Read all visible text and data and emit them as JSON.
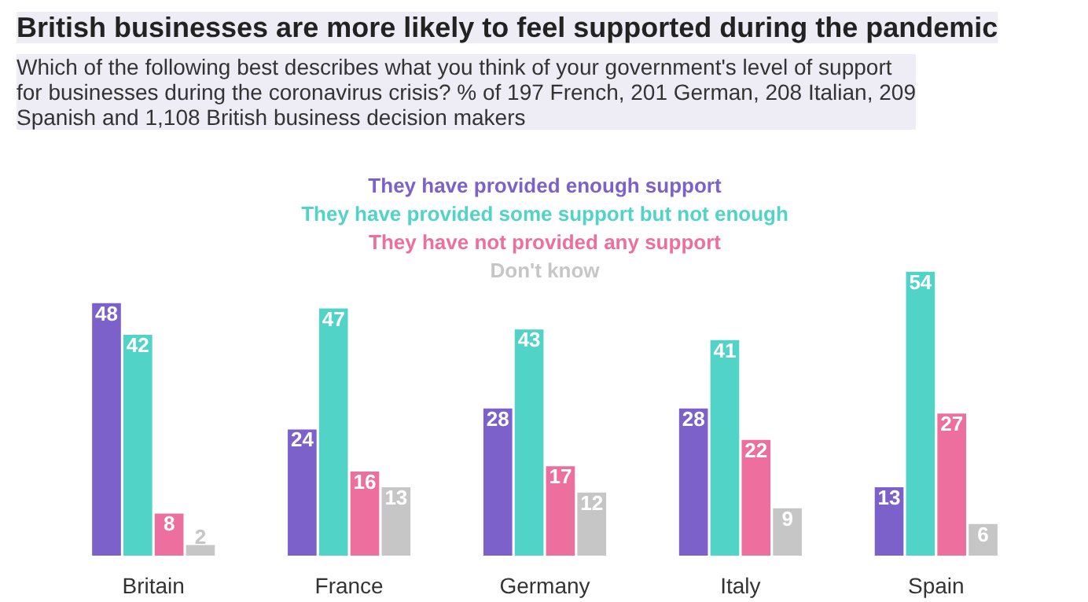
{
  "chart_data": {
    "type": "bar",
    "title": "British businesses are more likely to feel supported during the pandemic",
    "subtitle": "Which of the following best describes what you think of your government's level of support for businesses during the coronavirus crisis? % of 197 French, 201 German, 208 Italian, 209 Spanish and 1,108 British business decision makers",
    "categories": [
      "Britain",
      "France",
      "Germany",
      "Italy",
      "Spain"
    ],
    "series": [
      {
        "name": "They have provided enough support",
        "color": "#7b61c9",
        "values": [
          48,
          24,
          28,
          28,
          13
        ]
      },
      {
        "name": "They have provided some support but not enough",
        "color": "#52d3c8",
        "values": [
          42,
          47,
          43,
          41,
          54
        ]
      },
      {
        "name": "They have not provided any support",
        "color": "#ec6f9e",
        "values": [
          8,
          16,
          17,
          22,
          27
        ]
      },
      {
        "name": "Don't know",
        "color": "#c6c6c6",
        "values": [
          2,
          13,
          12,
          9,
          6
        ]
      }
    ],
    "data_labels": true,
    "legend": "top",
    "grid": false
  }
}
